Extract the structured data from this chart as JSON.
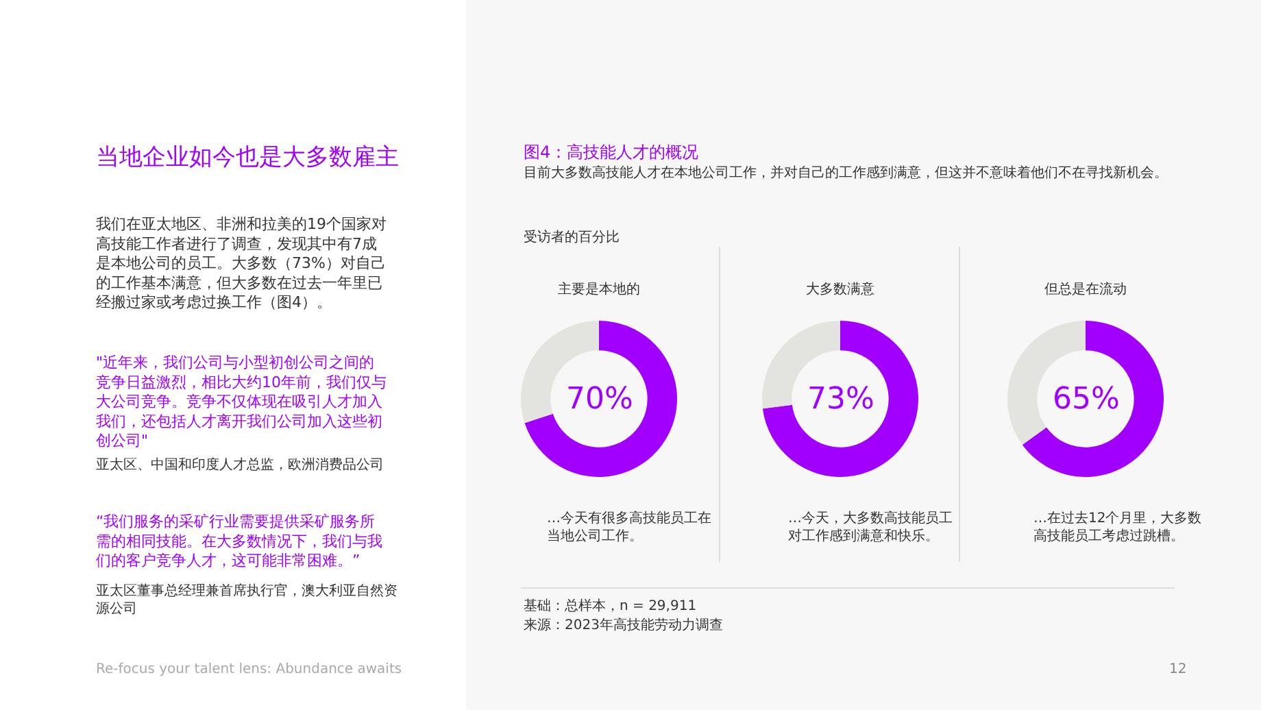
{
  "chart_data": [
    {
      "type": "other",
      "title": "当地企业如今也是大多数雇主",
      "annotations": [
        "我们在亚太地区、非洲和拉美的19个国家对高技能工作者进行了调查，发现其中有7成是本地公司的员工。大多数（73%）对自己的工作基本满意，但大多数在过去一年里已经搬过家或考虑过换工作（图4）。",
        "\"近年来，我们公司与小型初创公司之间的竞争日益激烈，相比大约10年前，我们仅与大公司竞争。竞争不仅体现在吸引人才加入我们，还包括人才离开我们公司加入这些初创公司\"",
        "亚太区、中国和印度人才总监，欧洲消费品公司",
        "“我们服务的采矿行业需要提供采矿服务所需的相同技能。在大多数情况下，我们与我们的客户竞争人才，这可能非常困难。”",
        "亚太区董事总经理兼首席执行官，澳大利亚自然资源公司",
        "Re-focus your talent lens: Abundance awaits",
        "12"
      ]
    },
    {
      "type": "other",
      "title": "图4：高技能人才的概况",
      "subtitle": "目前大多数高技能人才在本地公司工作，并对自己的工作感到满意，但这并不意味着他们不在寻找新机会。",
      "annotations": [
        "受访者的百分比",
        "基础：总样本，n = 29,911",
        "来源：2023年高技能劳动力调查"
      ]
    },
    {
      "type": "donut",
      "title": "主要是本地的",
      "categories": [
        null,
        null
      ],
      "values": [
        70,
        30
      ],
      "colors": [
        "#a100ff",
        "#e3e3df"
      ],
      "value_labels": [
        "70%",
        null
      ],
      "annotations": [
        "…今天有很多高技能员工在当地公司工作。"
      ]
    },
    {
      "type": "donut",
      "title": "大多数满意",
      "categories": [
        null,
        null
      ],
      "values": [
        73,
        27
      ],
      "colors": [
        "#a100ff",
        "#e3e3df"
      ],
      "value_labels": [
        "73%",
        null
      ],
      "annotations": [
        "…今天，大多数高技能员工对工作感到满意和快乐。"
      ]
    },
    {
      "type": "donut",
      "title": "但总是在流动",
      "categories": [
        null,
        null
      ],
      "values": [
        65,
        35
      ],
      "colors": [
        "#a100ff",
        "#e3e3df"
      ],
      "value_labels": [
        "65%",
        null
      ],
      "annotations": [
        "…在过去12个月里，大多数高技能员工考虑过跳槽。"
      ]
    }
  ]
}
